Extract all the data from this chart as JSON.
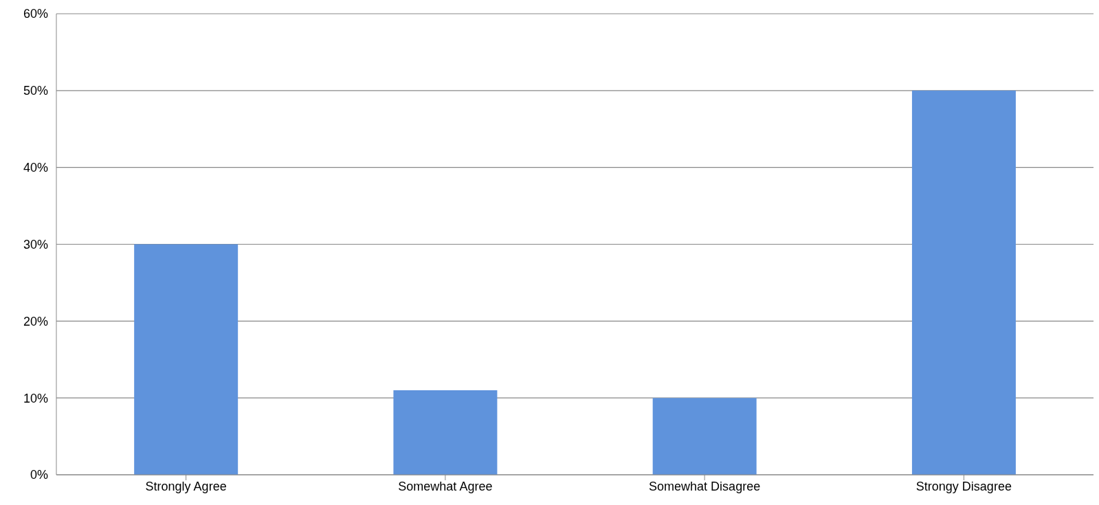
{
  "chart_data": {
    "type": "bar",
    "categories": [
      "Strongly Agree",
      "Somewhat Agree",
      "Somewhat Disagree",
      "Strongy Disagree"
    ],
    "values": [
      30,
      11,
      10,
      50
    ],
    "color": "#5f93dc",
    "ylim": [
      0,
      60
    ],
    "yticks": [
      {
        "value": 0,
        "label": "0%"
      },
      {
        "value": 10,
        "label": "10%"
      },
      {
        "value": 20,
        "label": "20%"
      },
      {
        "value": 30,
        "label": "30%"
      },
      {
        "value": 40,
        "label": "40%"
      },
      {
        "value": 50,
        "label": "50%"
      },
      {
        "value": 60,
        "label": "60%"
      }
    ],
    "grid": "y"
  }
}
